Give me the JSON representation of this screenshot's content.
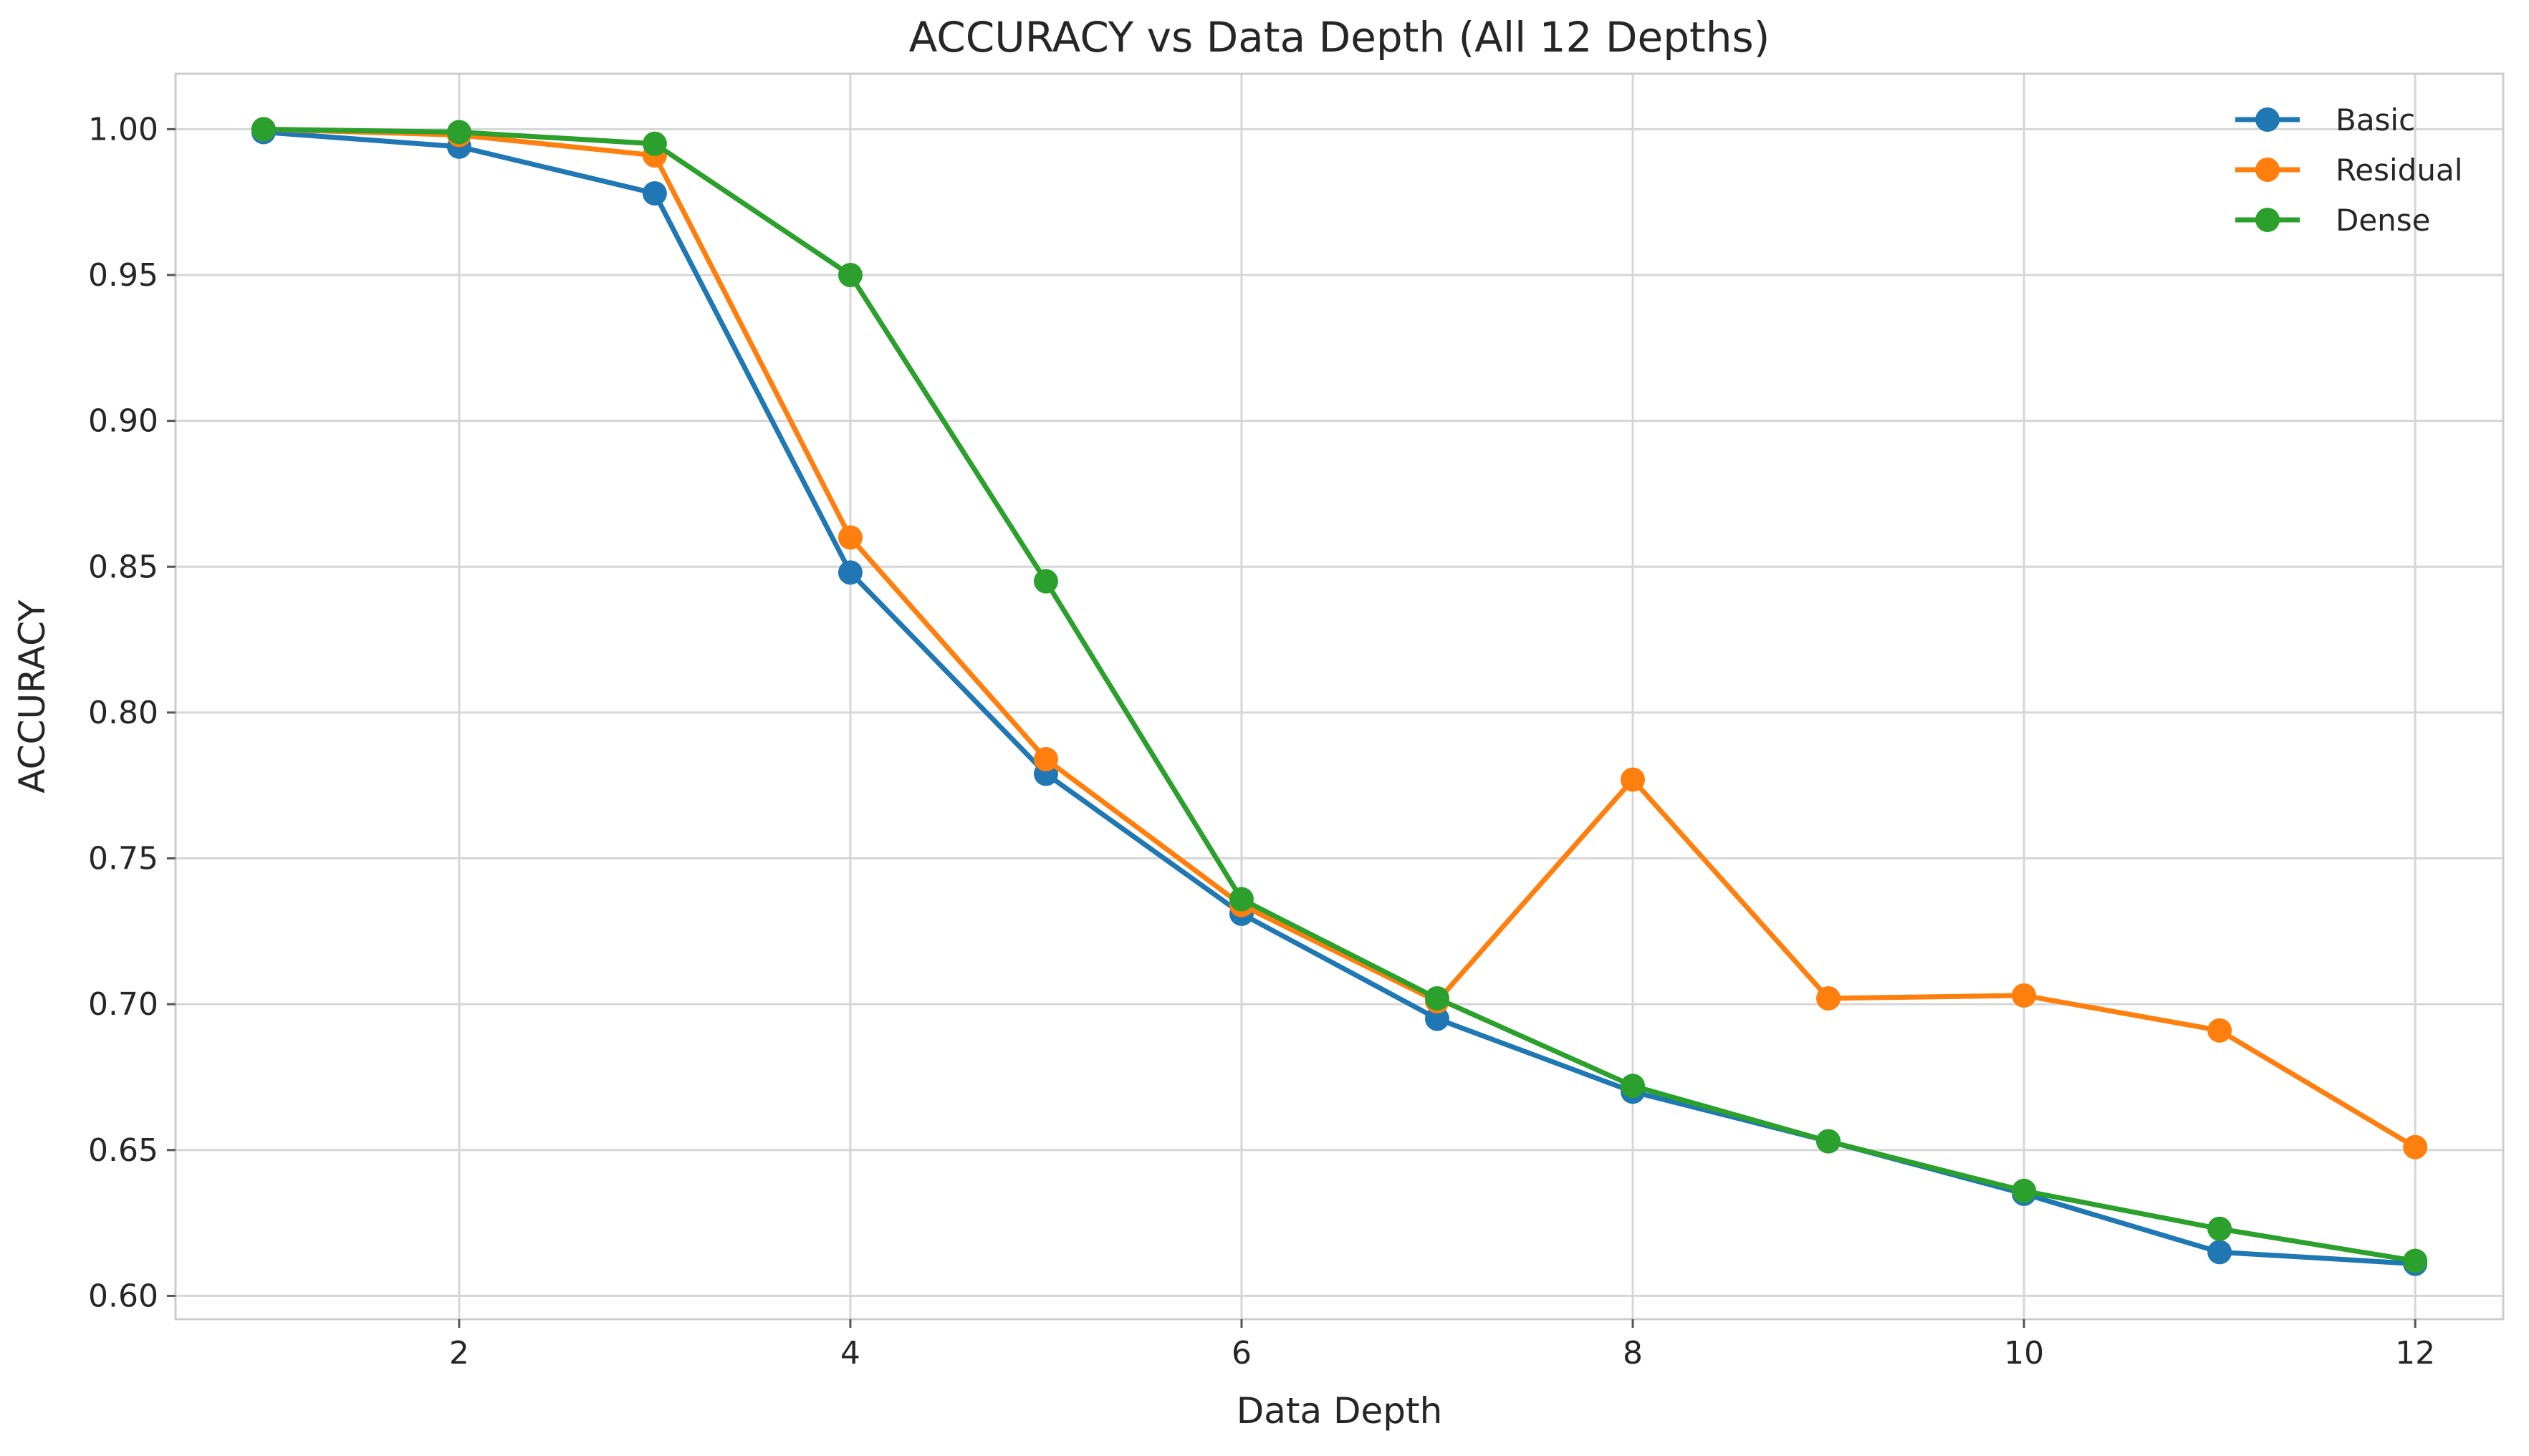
{
  "chart_data": {
    "type": "line",
    "title": "ACCURACY vs Data Depth (All 12 Depths)",
    "xlabel": "Data Depth",
    "ylabel": "ACCURACY",
    "x": [
      1,
      2,
      3,
      4,
      5,
      6,
      7,
      8,
      9,
      10,
      11,
      12
    ],
    "xlim": [
      0.55,
      12.45
    ],
    "ylim": [
      0.592,
      1.019
    ],
    "xticks": [
      2,
      4,
      6,
      8,
      10,
      12
    ],
    "xtick_labels": [
      "2",
      "4",
      "6",
      "8",
      "10",
      "12"
    ],
    "yticks": [
      0.6,
      0.65,
      0.7,
      0.75,
      0.8,
      0.85,
      0.9,
      0.95,
      1.0
    ],
    "ytick_labels": [
      "0.60",
      "0.65",
      "0.70",
      "0.75",
      "0.80",
      "0.85",
      "0.90",
      "0.95",
      "1.00"
    ],
    "grid": true,
    "legend_position": "top-right",
    "series": [
      {
        "name": "Basic",
        "color": "#1f77b4",
        "values": [
          0.999,
          0.994,
          0.978,
          0.848,
          0.779,
          0.731,
          0.695,
          0.67,
          0.653,
          0.635,
          0.615,
          0.611
        ]
      },
      {
        "name": "Residual",
        "color": "#ff7f0e",
        "values": [
          1.0,
          0.998,
          0.991,
          0.86,
          0.784,
          0.734,
          0.701,
          0.777,
          0.702,
          0.703,
          0.691,
          0.651
        ]
      },
      {
        "name": "Dense",
        "color": "#2ca02c",
        "values": [
          1.0,
          0.999,
          0.995,
          0.95,
          0.845,
          0.736,
          0.702,
          0.672,
          0.653,
          0.636,
          0.623,
          0.612
        ]
      }
    ]
  }
}
